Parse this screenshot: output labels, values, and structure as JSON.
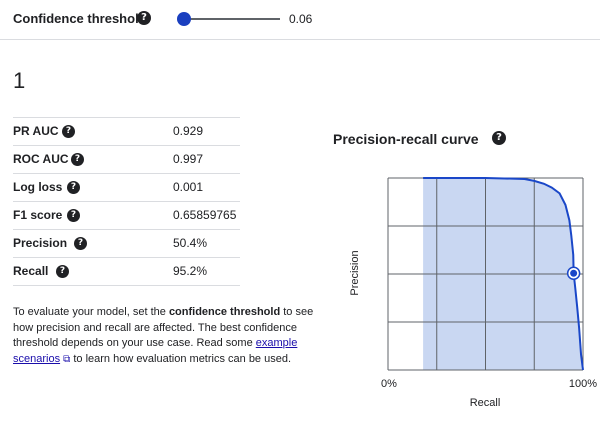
{
  "header": {
    "label": "Confidence threshold",
    "help_icon": "help-icon",
    "slider_value": "0.06",
    "slider_fraction": 0.06
  },
  "label_id": "1",
  "metrics": [
    {
      "name": "PR AUC",
      "value": "0.929"
    },
    {
      "name": "ROC AUC",
      "value": "0.997"
    },
    {
      "name": "Log loss",
      "value": "0.001"
    },
    {
      "name": "F1 score",
      "value": "0.65859765"
    },
    {
      "name": "Precision",
      "value": "50.4%"
    },
    {
      "name": "Recall",
      "value": "95.2%"
    }
  ],
  "description": {
    "part1": "To evaluate your model, set the ",
    "bold": "confidence threshold",
    "part2": " to see how precision and recall are affected. The best confidence threshold depends on your use case. Read some ",
    "link": "example scenarios",
    "part3": " to learn how evaluation metrics can be used."
  },
  "chart": {
    "title": "Precision-recall curve",
    "xlabel": "Recall",
    "ylabel": "Precision",
    "x_ticks": [
      "0%",
      "100%"
    ],
    "colors": {
      "line": "#1a47c8",
      "fill": "#c9d7f2",
      "grid": "#5f6368"
    }
  },
  "chart_data": {
    "type": "area",
    "xlabel": "Recall",
    "ylabel": "Precision",
    "xlim": [
      0,
      1
    ],
    "ylim": [
      0,
      1
    ],
    "x": [
      0.18,
      0.5,
      0.7,
      0.75,
      0.8,
      0.84,
      0.88,
      0.91,
      0.93,
      0.94,
      0.95,
      0.952,
      0.96,
      0.97,
      0.98,
      0.99,
      1.0
    ],
    "y": [
      1.0,
      1.0,
      0.995,
      0.985,
      0.97,
      0.95,
      0.92,
      0.86,
      0.78,
      0.7,
      0.6,
      0.504,
      0.43,
      0.33,
      0.22,
      0.08,
      0.0
    ],
    "marker": {
      "x": 0.952,
      "y": 0.504
    },
    "grid": true
  }
}
